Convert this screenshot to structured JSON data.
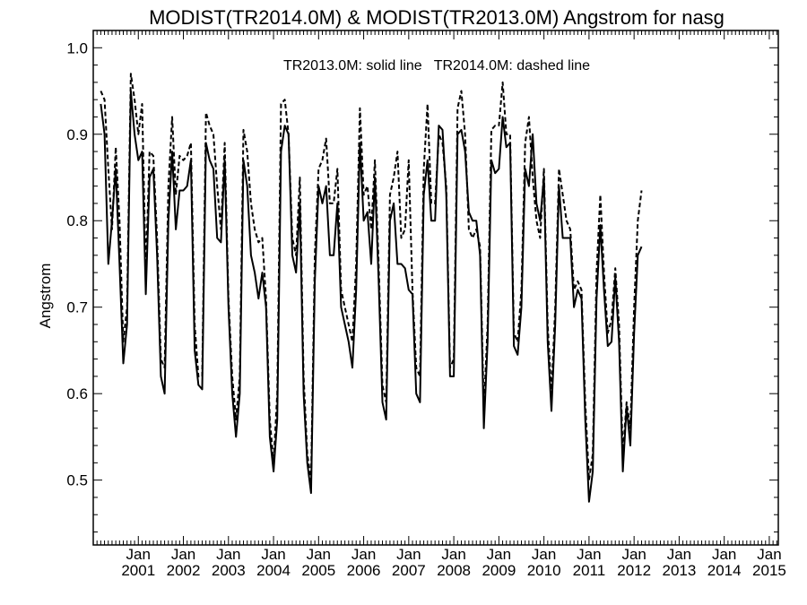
{
  "chart_data": {
    "type": "line",
    "title": "MODIST(TR2014.0M) & MODIST(TR2013.0M)  Angstrom for nasg",
    "ylabel": "Angstrom",
    "xlabel": "",
    "annotation": "TR2013.0M: solid line   TR2014.0M: dashed line",
    "ylim": [
      0.425,
      1.02
    ],
    "xlim": [
      2000.0,
      2015.2
    ],
    "yticks": [
      "0.5",
      "0.6",
      "0.7",
      "0.8",
      "0.9",
      "1.0"
    ],
    "xticks": [
      {
        "month": "Jan",
        "year": "2001"
      },
      {
        "month": "Jan",
        "year": "2002"
      },
      {
        "month": "Jan",
        "year": "2003"
      },
      {
        "month": "Jan",
        "year": "2004"
      },
      {
        "month": "Jan",
        "year": "2005"
      },
      {
        "month": "Jan",
        "year": "2006"
      },
      {
        "month": "Jan",
        "year": "2007"
      },
      {
        "month": "Jan",
        "year": "2008"
      },
      {
        "month": "Jan",
        "year": "2009"
      },
      {
        "month": "Jan",
        "year": "2010"
      },
      {
        "month": "Jan",
        "year": "2011"
      },
      {
        "month": "Jan",
        "year": "2012"
      },
      {
        "month": "Jan",
        "year": "2013"
      },
      {
        "month": "Jan",
        "year": "2014"
      },
      {
        "month": "Jan",
        "year": "2015"
      }
    ],
    "grid": false,
    "x_start": "2000-03",
    "x_step": "monthly",
    "series": [
      {
        "name": "TR2013.0M",
        "style": "solid",
        "color": "#000000",
        "values": [
          0.935,
          0.9,
          0.75,
          0.8,
          0.86,
          0.75,
          0.635,
          0.68,
          0.95,
          0.9,
          0.87,
          0.88,
          0.715,
          0.85,
          0.86,
          0.76,
          0.62,
          0.6,
          0.8,
          0.88,
          0.79,
          0.835,
          0.835,
          0.84,
          0.87,
          0.65,
          0.61,
          0.605,
          0.89,
          0.87,
          0.86,
          0.78,
          0.775,
          0.87,
          0.7,
          0.6,
          0.55,
          0.6,
          0.87,
          0.84,
          0.76,
          0.74,
          0.71,
          0.74,
          0.7,
          0.55,
          0.51,
          0.57,
          0.88,
          0.91,
          0.9,
          0.76,
          0.74,
          0.82,
          0.6,
          0.52,
          0.485,
          0.73,
          0.84,
          0.82,
          0.84,
          0.76,
          0.76,
          0.82,
          0.7,
          0.68,
          0.66,
          0.63,
          0.72,
          0.89,
          0.8,
          0.81,
          0.75,
          0.85,
          0.73,
          0.59,
          0.57,
          0.8,
          0.82,
          0.75,
          0.75,
          0.745,
          0.72,
          0.715,
          0.6,
          0.59,
          0.83,
          0.87,
          0.8,
          0.8,
          0.91,
          0.905,
          0.83,
          0.62,
          0.62,
          0.9,
          0.905,
          0.88,
          0.81,
          0.8,
          0.8,
          0.76,
          0.56,
          0.66,
          0.87,
          0.855,
          0.86,
          0.92,
          0.885,
          0.89,
          0.655,
          0.645,
          0.7,
          0.86,
          0.84,
          0.9,
          0.82,
          0.8,
          0.85,
          0.66,
          0.58,
          0.68,
          0.84,
          0.78,
          0.78,
          0.78,
          0.7,
          0.72,
          0.71,
          0.57,
          0.475,
          0.51,
          0.71,
          0.795,
          0.72,
          0.655,
          0.66,
          0.735,
          0.66,
          0.51,
          0.585,
          0.54,
          0.67,
          0.76,
          0.77
        ]
      },
      {
        "name": "TR2014.0M",
        "style": "dashed",
        "color": "#000000",
        "values": [
          0.95,
          0.94,
          0.86,
          0.79,
          0.885,
          0.8,
          0.66,
          0.7,
          0.97,
          0.94,
          0.9,
          0.935,
          0.74,
          0.88,
          0.875,
          0.78,
          0.64,
          0.63,
          0.84,
          0.92,
          0.83,
          0.875,
          0.87,
          0.875,
          0.89,
          0.68,
          0.62,
          0.62,
          0.925,
          0.91,
          0.9,
          0.84,
          0.79,
          0.89,
          0.71,
          0.62,
          0.57,
          0.62,
          0.905,
          0.88,
          0.82,
          0.79,
          0.775,
          0.78,
          0.71,
          0.57,
          0.52,
          0.6,
          0.935,
          0.94,
          0.9,
          0.78,
          0.76,
          0.85,
          0.62,
          0.53,
          0.5,
          0.76,
          0.86,
          0.87,
          0.895,
          0.82,
          0.82,
          0.86,
          0.72,
          0.7,
          0.68,
          0.66,
          0.75,
          0.93,
          0.83,
          0.84,
          0.79,
          0.87,
          0.75,
          0.61,
          0.59,
          0.83,
          0.85,
          0.88,
          0.78,
          0.79,
          0.87,
          0.72,
          0.63,
          0.62,
          0.86,
          0.935,
          0.82,
          0.82,
          0.9,
          0.89,
          0.84,
          0.63,
          0.64,
          0.93,
          0.95,
          0.9,
          0.79,
          0.78,
          0.79,
          0.77,
          0.58,
          0.68,
          0.905,
          0.91,
          0.91,
          0.96,
          0.9,
          0.9,
          0.67,
          0.66,
          0.72,
          0.89,
          0.92,
          0.85,
          0.8,
          0.78,
          0.86,
          0.68,
          0.6,
          0.7,
          0.86,
          0.83,
          0.8,
          0.79,
          0.72,
          0.73,
          0.72,
          0.59,
          0.5,
          0.53,
          0.74,
          0.83,
          0.74,
          0.67,
          0.685,
          0.745,
          0.68,
          0.53,
          0.59,
          0.56,
          0.7,
          0.8,
          0.835
        ]
      }
    ]
  }
}
